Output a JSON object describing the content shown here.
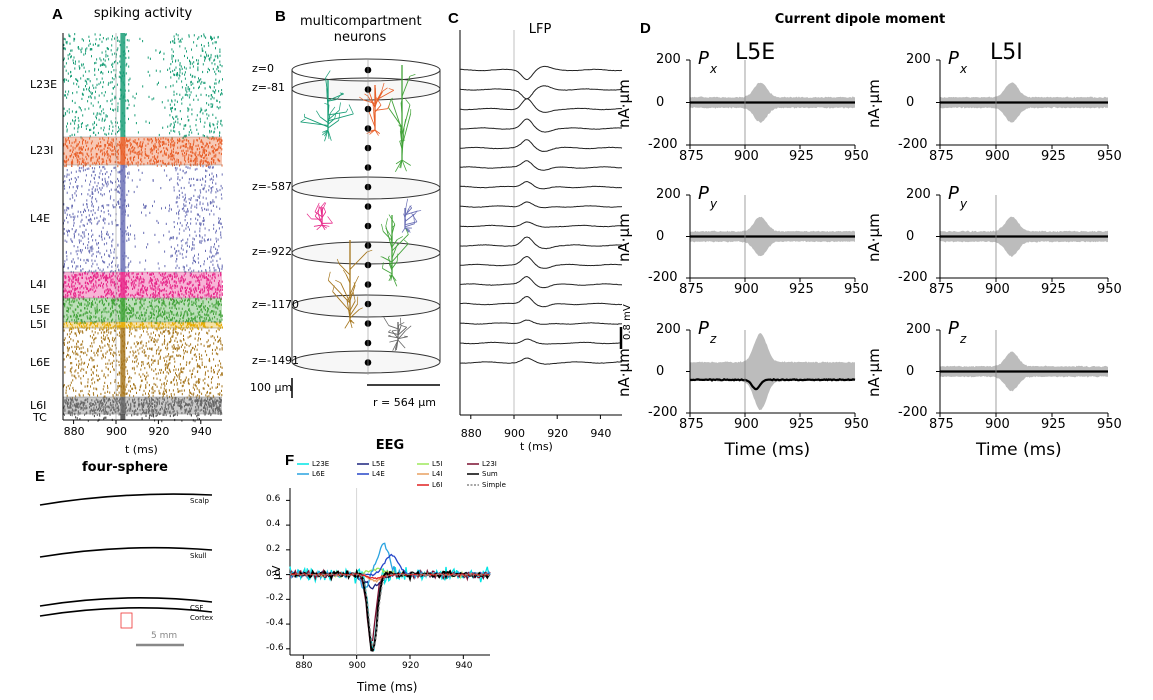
{
  "colors": {
    "L23E": "#1a9e77",
    "L23I": "#e8602a",
    "L4E": "#6a6fb5",
    "L4I": "#e7298a",
    "L5E": "#43a33a",
    "L5I": "#e6ab02",
    "L6E": "#a6761d",
    "L6I": "#666666",
    "dipole_grey": "#b0b0b0"
  },
  "panels": {
    "A": {
      "letter": "A",
      "title": "spiking activity",
      "xlabel": "t (ms)"
    },
    "B": {
      "letter": "B",
      "title_line1": "multicompartment",
      "title_line2": "neurons",
      "scalebar": "100 μm",
      "radius": "r = 564 μm",
      "depths": [
        "z=0",
        "z=-81",
        "z=-587",
        "z=-922",
        "z=-1170",
        "z=-1491"
      ]
    },
    "C": {
      "letter": "C",
      "title": "LFP",
      "xlabel": "t (ms)",
      "scalebar": "0.8 mV"
    },
    "D": {
      "letter": "D",
      "title": "Current dipole moment",
      "col_left": "L5E",
      "col_right": "L5I",
      "ylabel": "nA·μm",
      "xlabel": "Time (ms)",
      "components": [
        "P",
        "P",
        "P"
      ],
      "subscripts": [
        "x",
        "y",
        "z"
      ]
    },
    "E": {
      "letter": "E",
      "title": "four-sphere",
      "labels": [
        "Scalp",
        "Skull",
        "CSF",
        "Cortex"
      ],
      "scalebar": "5 mm"
    },
    "F": {
      "letter": "F",
      "title": "EEG",
      "ylabel": "μV",
      "xlabel": "Time (ms)"
    }
  },
  "chart_data": [
    {
      "type": "scatter",
      "panel": "A",
      "title": "spiking activity",
      "xlabel": "t (ms)",
      "xticks": [
        880,
        900,
        920,
        940
      ],
      "xlim": [
        875,
        950
      ],
      "populations": [
        "L23E",
        "L23I",
        "L4E",
        "L4I",
        "L5E",
        "L5I",
        "L6E",
        "L6I",
        "TC"
      ],
      "note_event_ms": 903
    },
    {
      "type": "line",
      "panel": "C",
      "title": "LFP",
      "xlabel": "t (ms)",
      "xticks": [
        880,
        900,
        920,
        940
      ],
      "xlim": [
        875,
        950
      ],
      "channels": 16,
      "scale_mV": 0.8
    },
    {
      "type": "line",
      "panel": "D",
      "title": "Current dipole moment",
      "xlabel": "Time (ms)",
      "ylabel": "nA·μm",
      "xticks": [
        875,
        900,
        925,
        950
      ],
      "yticks": [
        200,
        0,
        -200
      ],
      "ylim": [
        -200,
        200
      ],
      "series": [
        {
          "name": "L5E",
          "components": [
            "Px",
            "Py",
            "Pz"
          ]
        },
        {
          "name": "L5I",
          "components": [
            "Px",
            "Py",
            "Pz"
          ]
        }
      ]
    },
    {
      "type": "line",
      "panel": "F",
      "title": "EEG",
      "xlabel": "Time (ms)",
      "ylabel": "μV",
      "xticks": [
        880,
        900,
        920,
        940
      ],
      "yticks": [
        0.6,
        0.4,
        0.2,
        0.0,
        -0.2,
        -0.4,
        -0.6
      ],
      "xlim": [
        875,
        950
      ],
      "ylim": [
        -0.65,
        0.7
      ],
      "legend": [
        {
          "name": "L23E",
          "color": "#00e5e5"
        },
        {
          "name": "L5E",
          "color": "#1a237e"
        },
        {
          "name": "L5I",
          "color": "#9ee85a"
        },
        {
          "name": "L23I",
          "color": "#7a1030"
        },
        {
          "name": "L6E",
          "color": "#29a3e0"
        },
        {
          "name": "L4E",
          "color": "#2545c8"
        },
        {
          "name": "L4I",
          "color": "#e8a060"
        },
        {
          "name": "Sum",
          "color": "#000000"
        },
        {
          "name": "L6I",
          "color": "#e02020"
        },
        {
          "name": "Simple",
          "color": "#888888"
        }
      ],
      "peak_sum": -0.62,
      "peak_time_ms": 906
    }
  ]
}
